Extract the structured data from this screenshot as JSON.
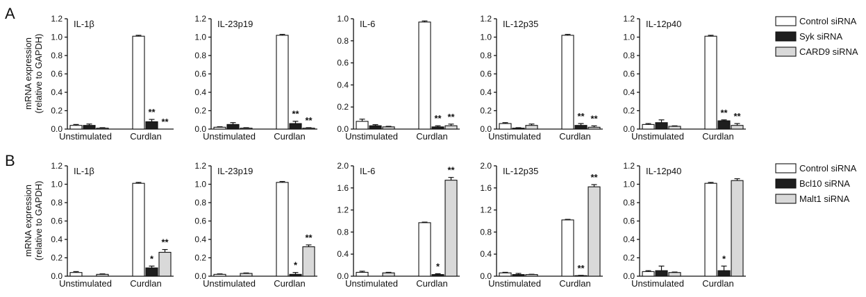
{
  "colors": {
    "control": "#ffffff",
    "syk": "#1e1e1e",
    "card9": "#d9d9d9",
    "bcl10": "#1e1e1e",
    "malt1": "#d9d9d9",
    "stroke": "#111111"
  },
  "panels": [
    {
      "letter": "A",
      "y_title_line1": "mRNA expression",
      "y_title_line2": "(relative to GAPDH)",
      "legend": [
        "Control siRNA",
        "Syk siRNA",
        "CARD9 siRNA"
      ]
    },
    {
      "letter": "B",
      "y_title_line1": "mRNA expression",
      "y_title_line2": "(relative to GAPDH)",
      "legend": [
        "Control siRNA",
        "Bcl10 siRNA",
        "Malt1 siRNA"
      ]
    }
  ],
  "chart_data": [
    {
      "panel": "A",
      "type": "bar",
      "title": "IL-1β",
      "categories": [
        "Unstimulated",
        "Curdlan"
      ],
      "ylim": [
        0,
        1.2
      ],
      "yticks": [
        "0.0",
        "0.2",
        "0.4",
        "0.6",
        "0.8",
        "1.0",
        "1.2"
      ],
      "series": [
        {
          "name": "Control siRNA",
          "values": [
            0.04,
            1.01
          ],
          "errors": [
            0.01,
            0.01
          ],
          "sig": [
            "",
            ""
          ]
        },
        {
          "name": "Syk siRNA",
          "values": [
            0.04,
            0.08
          ],
          "errors": [
            0.015,
            0.025
          ],
          "sig": [
            "",
            "**"
          ]
        },
        {
          "name": "CARD9 siRNA",
          "values": [
            0.01,
            0.0
          ],
          "errors": [
            0.005,
            0.0
          ],
          "sig": [
            "",
            "**"
          ]
        }
      ]
    },
    {
      "panel": "A",
      "type": "bar",
      "title": "IL-23p19",
      "categories": [
        "Unstimulated",
        "Curdlan"
      ],
      "ylim": [
        0,
        1.2
      ],
      "yticks": [
        "0.0",
        "0.2",
        "0.4",
        "0.6",
        "0.8",
        "1.0",
        "1.2"
      ],
      "series": [
        {
          "name": "Control siRNA",
          "values": [
            0.02,
            1.02
          ],
          "errors": [
            0.005,
            0.01
          ],
          "sig": [
            "",
            ""
          ]
        },
        {
          "name": "Syk siRNA",
          "values": [
            0.05,
            0.06
          ],
          "errors": [
            0.02,
            0.025
          ],
          "sig": [
            "",
            "**"
          ]
        },
        {
          "name": "CARD9 siRNA",
          "values": [
            0.01,
            0.01
          ],
          "errors": [
            0.005,
            0.005
          ],
          "sig": [
            "",
            "**"
          ]
        }
      ]
    },
    {
      "panel": "A",
      "type": "bar",
      "title": "IL-6",
      "categories": [
        "Unstimulated",
        "Curdlan"
      ],
      "ylim": [
        0,
        1.0
      ],
      "yticks": [
        "0.0",
        "0.2",
        "0.4",
        "0.6",
        "0.8",
        "1.0"
      ],
      "series": [
        {
          "name": "Control siRNA",
          "values": [
            0.07,
            0.97
          ],
          "errors": [
            0.02,
            0.01
          ],
          "sig": [
            "",
            ""
          ]
        },
        {
          "name": "Syk siRNA",
          "values": [
            0.03,
            0.02
          ],
          "errors": [
            0.01,
            0.01
          ],
          "sig": [
            "",
            "**"
          ]
        },
        {
          "name": "CARD9 siRNA",
          "values": [
            0.02,
            0.03
          ],
          "errors": [
            0.005,
            0.015
          ],
          "sig": [
            "",
            "**"
          ]
        }
      ]
    },
    {
      "panel": "A",
      "type": "bar",
      "title": "IL-12p35",
      "categories": [
        "Unstimulated",
        "Curdlan"
      ],
      "ylim": [
        0,
        1.2
      ],
      "yticks": [
        "0.0",
        "0.2",
        "0.4",
        "0.6",
        "0.8",
        "1.0",
        "1.2"
      ],
      "series": [
        {
          "name": "Control siRNA",
          "values": [
            0.06,
            1.02
          ],
          "errors": [
            0.01,
            0.01
          ],
          "sig": [
            "",
            ""
          ]
        },
        {
          "name": "Syk siRNA",
          "values": [
            0.01,
            0.04
          ],
          "errors": [
            0.005,
            0.02
          ],
          "sig": [
            "",
            "**"
          ]
        },
        {
          "name": "CARD9 siRNA",
          "values": [
            0.04,
            0.02
          ],
          "errors": [
            0.015,
            0.015
          ],
          "sig": [
            "",
            "**"
          ]
        }
      ]
    },
    {
      "panel": "A",
      "type": "bar",
      "title": "IL-12p40",
      "categories": [
        "Unstimulated",
        "Curdlan"
      ],
      "ylim": [
        0,
        1.2
      ],
      "yticks": [
        "0.0",
        "0.2",
        "0.4",
        "0.6",
        "0.8",
        "1.0",
        "1.2"
      ],
      "series": [
        {
          "name": "Control siRNA",
          "values": [
            0.05,
            1.01
          ],
          "errors": [
            0.01,
            0.01
          ],
          "sig": [
            "",
            ""
          ]
        },
        {
          "name": "Syk siRNA",
          "values": [
            0.07,
            0.09
          ],
          "errors": [
            0.03,
            0.01
          ],
          "sig": [
            "",
            "**"
          ]
        },
        {
          "name": "CARD9 siRNA",
          "values": [
            0.03,
            0.04
          ],
          "errors": [
            0.005,
            0.02
          ],
          "sig": [
            "",
            "**"
          ]
        }
      ]
    },
    {
      "panel": "B",
      "type": "bar",
      "title": "IL-1β",
      "categories": [
        "Unstimulated",
        "Curdlan"
      ],
      "ylim": [
        0,
        1.2
      ],
      "yticks": [
        "0.0",
        "0.2",
        "0.4",
        "0.6",
        "0.8",
        "1.0",
        "1.2"
      ],
      "series": [
        {
          "name": "Control siRNA",
          "values": [
            0.04,
            1.01
          ],
          "errors": [
            0.01,
            0.01
          ],
          "sig": [
            "",
            ""
          ]
        },
        {
          "name": "Bcl10 siRNA",
          "values": [
            0.0,
            0.09
          ],
          "errors": [
            0.0,
            0.02
          ],
          "sig": [
            "",
            "*"
          ]
        },
        {
          "name": "Malt1 siRNA",
          "values": [
            0.02,
            0.26
          ],
          "errors": [
            0.005,
            0.03
          ],
          "sig": [
            "",
            "**"
          ]
        }
      ]
    },
    {
      "panel": "B",
      "type": "bar",
      "title": "IL-23p19",
      "categories": [
        "Unstimulated",
        "Curdlan"
      ],
      "ylim": [
        0,
        1.2
      ],
      "yticks": [
        "0.0",
        "0.2",
        "0.4",
        "0.6",
        "0.8",
        "1.0",
        "1.2"
      ],
      "series": [
        {
          "name": "Control siRNA",
          "values": [
            0.02,
            1.02
          ],
          "errors": [
            0.005,
            0.01
          ],
          "sig": [
            "",
            ""
          ]
        },
        {
          "name": "Bcl10 siRNA",
          "values": [
            0.0,
            0.02
          ],
          "errors": [
            0.0,
            0.02
          ],
          "sig": [
            "",
            "*"
          ]
        },
        {
          "name": "Malt1 siRNA",
          "values": [
            0.03,
            0.32
          ],
          "errors": [
            0.005,
            0.02
          ],
          "sig": [
            "",
            "**"
          ]
        }
      ]
    },
    {
      "panel": "B",
      "type": "bar",
      "title": "IL-6",
      "categories": [
        "Unstimulated",
        "Curdlan"
      ],
      "ylim": [
        0,
        2.0
      ],
      "yticks": [
        "0.0",
        "0.4",
        "0.8",
        "1.2",
        "1.6",
        "2.0"
      ],
      "series": [
        {
          "name": "Control siRNA",
          "values": [
            0.07,
            0.97
          ],
          "errors": [
            0.02,
            0.01
          ],
          "sig": [
            "",
            ""
          ]
        },
        {
          "name": "Bcl10 siRNA",
          "values": [
            0.0,
            0.03
          ],
          "errors": [
            0.0,
            0.015
          ],
          "sig": [
            "",
            "*"
          ]
        },
        {
          "name": "Malt1 siRNA",
          "values": [
            0.06,
            1.74
          ],
          "errors": [
            0.01,
            0.05
          ],
          "sig": [
            "",
            "**"
          ]
        }
      ]
    },
    {
      "panel": "B",
      "type": "bar",
      "title": "IL-12p35",
      "categories": [
        "Unstimulated",
        "Curdlan"
      ],
      "ylim": [
        0,
        2.0
      ],
      "yticks": [
        "0.0",
        "0.4",
        "0.8",
        "1.2",
        "1.6",
        "2.0"
      ],
      "series": [
        {
          "name": "Control siRNA",
          "values": [
            0.06,
            1.02
          ],
          "errors": [
            0.01,
            0.01
          ],
          "sig": [
            "",
            ""
          ]
        },
        {
          "name": "Bcl10 siRNA",
          "values": [
            0.03,
            0.01
          ],
          "errors": [
            0.02,
            0.005
          ],
          "sig": [
            "",
            "**"
          ]
        },
        {
          "name": "Malt1 siRNA",
          "values": [
            0.03,
            1.62
          ],
          "errors": [
            0.005,
            0.04
          ],
          "sig": [
            "",
            "**"
          ]
        }
      ]
    },
    {
      "panel": "B",
      "type": "bar",
      "title": "IL-12p40",
      "categories": [
        "Unstimulated",
        "Curdlan"
      ],
      "ylim": [
        0,
        1.2
      ],
      "yticks": [
        "0.0",
        "0.2",
        "0.4",
        "0.6",
        "0.8",
        "1.0",
        "1.2"
      ],
      "series": [
        {
          "name": "Control siRNA",
          "values": [
            0.05,
            1.01
          ],
          "errors": [
            0.01,
            0.01
          ],
          "sig": [
            "",
            ""
          ]
        },
        {
          "name": "Bcl10 siRNA",
          "values": [
            0.06,
            0.06
          ],
          "errors": [
            0.05,
            0.05
          ],
          "sig": [
            "",
            "*"
          ]
        },
        {
          "name": "Malt1 siRNA",
          "values": [
            0.04,
            1.04
          ],
          "errors": [
            0.005,
            0.02
          ],
          "sig": [
            "",
            ""
          ]
        }
      ]
    }
  ]
}
